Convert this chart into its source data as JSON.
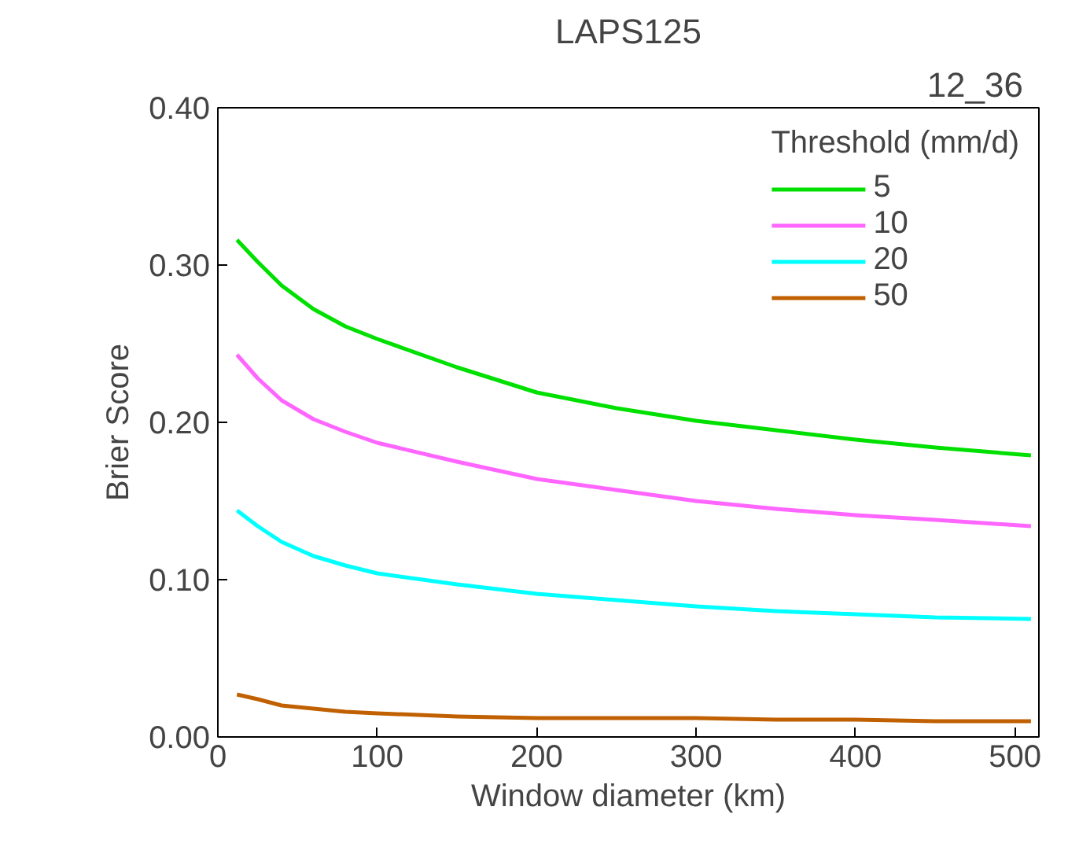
{
  "chart_data": {
    "type": "line",
    "title": "LAPS125",
    "annotations": [
      "12_36"
    ],
    "xlabel": "Window diameter (km)",
    "ylabel": "Brier Score",
    "legend_title": "Threshold (mm/d)",
    "legend": "top right",
    "grid": false,
    "marker": "none",
    "line_style": "solid",
    "x": [
      12,
      25,
      40,
      60,
      80,
      100,
      150,
      200,
      250,
      300,
      350,
      400,
      450,
      510
    ],
    "xlim": [
      0,
      515
    ],
    "xticks": [
      0,
      100,
      200,
      300,
      400,
      500
    ],
    "ylim": [
      0,
      0.4
    ],
    "yticks": [
      {
        "value": 0,
        "label": "0.00"
      },
      {
        "value": 0.1,
        "label": "0.10"
      },
      {
        "value": 0.2,
        "label": "0.20"
      },
      {
        "value": 0.3,
        "label": "0.30"
      },
      {
        "value": 0.4,
        "label": "0.40"
      }
    ],
    "series": [
      {
        "name": "5",
        "color": "#00e000",
        "values": [
          0.316,
          0.302,
          0.287,
          0.272,
          0.261,
          0.253,
          0.235,
          0.219,
          0.209,
          0.201,
          0.195,
          0.189,
          0.184,
          0.179
        ]
      },
      {
        "name": "10",
        "color": "#ff66ff",
        "values": [
          0.243,
          0.228,
          0.214,
          0.202,
          0.194,
          0.187,
          0.175,
          0.164,
          0.157,
          0.15,
          0.145,
          0.141,
          0.138,
          0.134
        ]
      },
      {
        "name": "20",
        "color": "#00ffff",
        "values": [
          0.144,
          0.134,
          0.124,
          0.115,
          0.109,
          0.104,
          0.097,
          0.091,
          0.087,
          0.083,
          0.08,
          0.078,
          0.076,
          0.075
        ]
      },
      {
        "name": "50",
        "color": "#c06000",
        "values": [
          0.027,
          0.024,
          0.02,
          0.018,
          0.016,
          0.015,
          0.013,
          0.012,
          0.012,
          0.012,
          0.011,
          0.011,
          0.01,
          0.01
        ]
      }
    ]
  }
}
